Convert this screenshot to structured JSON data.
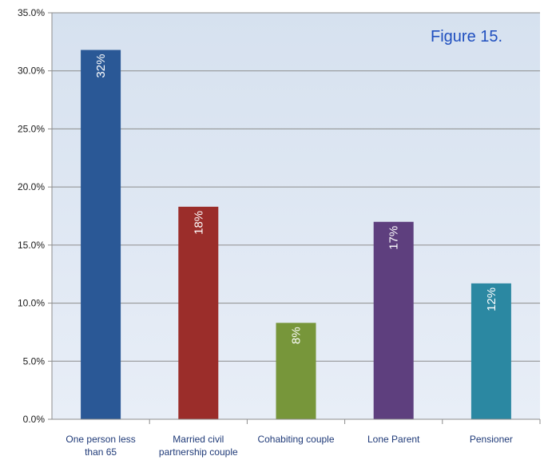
{
  "chart_data": {
    "type": "bar",
    "categories": [
      "One person less than 65",
      "Married civil partnership couple",
      "Cohabiting couple",
      "Lone Parent",
      "Pensioner"
    ],
    "category_lines": [
      [
        "One person less",
        "than 65"
      ],
      [
        "Married civil",
        "partnership couple"
      ],
      [
        "Cohabiting couple"
      ],
      [
        "Lone Parent"
      ],
      [
        "Pensioner"
      ]
    ],
    "values": [
      31.8,
      18.3,
      8.3,
      17.0,
      11.7
    ],
    "data_labels": [
      "32%",
      "18%",
      "8%",
      "17%",
      "12%"
    ],
    "colors": [
      "#2a5896",
      "#9b2d2a",
      "#77963a",
      "#5e3f7e",
      "#2b88a2"
    ],
    "ylim": [
      0,
      35
    ],
    "yticks": [
      "0.0%",
      "5.0%",
      "10.0%",
      "15.0%",
      "20.0%",
      "25.0%",
      "30.0%",
      "35.0%"
    ],
    "annotation": "Figure 15.",
    "grid": true,
    "plot_background": "#dce6f2"
  }
}
